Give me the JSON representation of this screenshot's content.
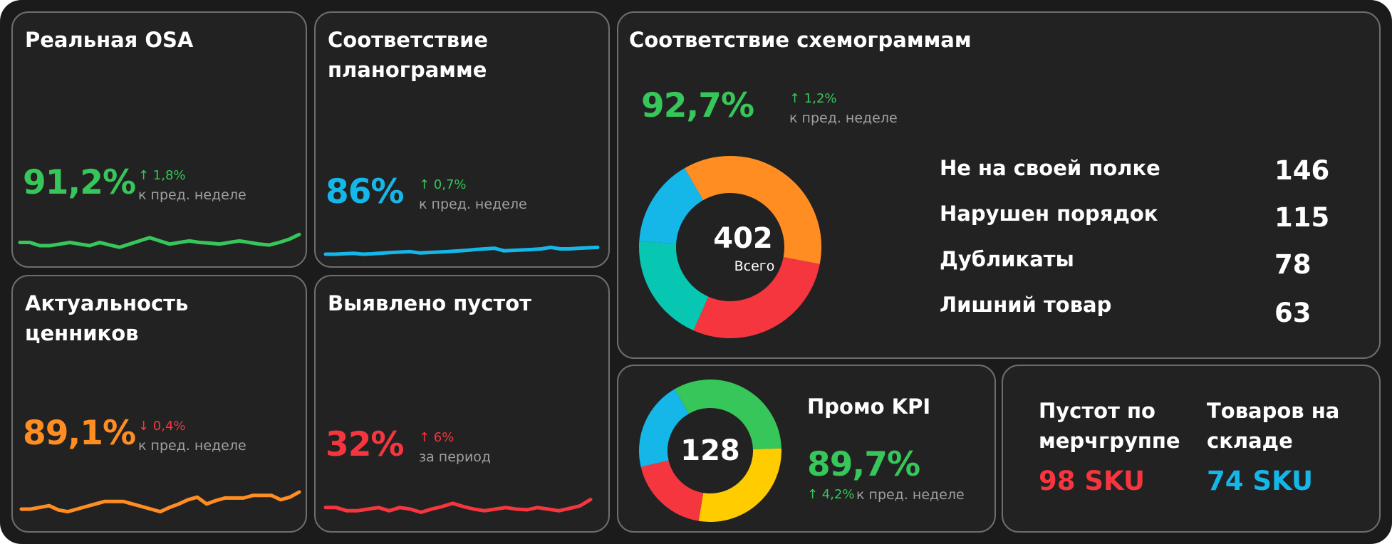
{
  "colors": {
    "green": "#36c659",
    "blue": "#14b7e8",
    "orange": "#ff8d22",
    "red": "#f5363f",
    "yellow": "#ffcc00",
    "teal": "#08c7b2"
  },
  "osa": {
    "title": "Реальная OSA",
    "value": "91,2%",
    "delta": "↑ 1,8%",
    "note": "к пред. неделе",
    "trend": [
      50,
      50,
      40,
      40,
      45,
      50,
      45,
      40,
      50,
      42,
      35,
      45,
      55,
      65,
      55,
      45,
      50,
      55,
      50,
      48,
      45,
      50,
      55,
      50,
      45,
      42,
      50,
      60,
      75
    ]
  },
  "planogram": {
    "title_line1": "Соответствие",
    "title_line2": "планограмме",
    "value": "86%",
    "delta": "↑ 0,7%",
    "note": "к пред. неделе",
    "trend": [
      20,
      20,
      22,
      24,
      20,
      22,
      25,
      28,
      30,
      32,
      26,
      28,
      30,
      32,
      35,
      38,
      42,
      45,
      48,
      36,
      38,
      40,
      42,
      45,
      52,
      45,
      45,
      48,
      50,
      52
    ]
  },
  "price_tags": {
    "title_line1": "Актуальность",
    "title_line2": "ценников",
    "value": "89,1%",
    "delta": "↓ 0,4%",
    "note": "к пред. неделе",
    "trend": [
      30,
      30,
      34,
      38,
      28,
      24,
      30,
      36,
      42,
      48,
      48,
      48,
      42,
      36,
      30,
      24,
      34,
      42,
      52,
      58,
      42,
      50,
      56,
      56,
      56,
      62,
      62,
      62,
      52,
      58,
      70
    ]
  },
  "empty_slots": {
    "title": "Выявлено пустот",
    "value": "32%",
    "delta": "↑ 6%",
    "note": "за период",
    "trend": [
      45,
      45,
      35,
      35,
      40,
      45,
      35,
      45,
      40,
      30,
      40,
      48,
      58,
      48,
      40,
      35,
      40,
      45,
      40,
      38,
      45,
      40,
      35,
      42,
      50,
      70
    ]
  },
  "schemogram": {
    "title": "Соответствие схемограммам",
    "value": "92,7%",
    "delta": "↑ 1,2%",
    "note": "к пред. неделе",
    "total": "402",
    "total_label": "Всего",
    "items": [
      {
        "label": "Не на своей полке",
        "value": "146",
        "color": "orange"
      },
      {
        "label": "Нарушен порядок",
        "value": "115",
        "color": "red"
      },
      {
        "label": "Дубликаты",
        "value": "78",
        "color": "teal"
      },
      {
        "label": "Лишний товар",
        "value": "63",
        "color": "blue"
      }
    ]
  },
  "promo": {
    "title": "Промо KPI",
    "center": "128",
    "value": "89,7%",
    "delta": "↑ 4,2%",
    "note": "к пред. неделе",
    "segments": [
      {
        "value": 42,
        "color": "green"
      },
      {
        "value": 36,
        "color": "yellow"
      },
      {
        "value": 24,
        "color": "red"
      },
      {
        "value": 26,
        "color": "blue"
      }
    ]
  },
  "empty_by_group": {
    "title_line1": "Пустот по",
    "title_line2": "мерчгруппе",
    "value": "98 SKU"
  },
  "stock": {
    "title_line1": "Товаров на",
    "title_line2": "складе",
    "value": "74 SKU"
  }
}
